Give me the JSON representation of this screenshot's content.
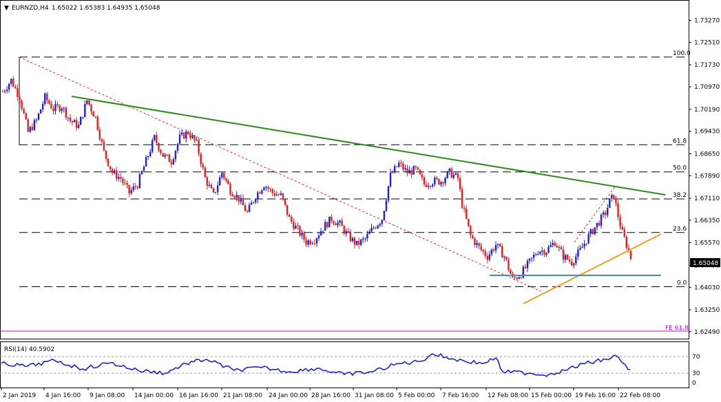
{
  "header": {
    "symbol": "EURNZD,H4",
    "ohlc": "1.65022 1.65383 1.64935 1.65048"
  },
  "price_badge": "1.65048",
  "rsi": {
    "label": "RSI(14) 40.5902",
    "levels": [
      "70",
      "30",
      "0"
    ],
    "upper": 70,
    "lower": 30
  },
  "fib_labels": [
    {
      "text": "100.0",
      "price": 1.72
    },
    {
      "text": "61.8",
      "price": 1.68963
    },
    {
      "text": "50.0",
      "price": 1.68024
    },
    {
      "text": "38.2",
      "price": 1.67086
    },
    {
      "text": "23.6",
      "price": 1.65925
    },
    {
      "text": "0.0",
      "price": 1.6405
    }
  ],
  "fe_label": {
    "text": "FE 61.8",
    "price": 1.6272
  },
  "colors": {
    "bull": "#2020d0",
    "bear": "#e02020",
    "trend_green": "#2a8a1a",
    "support_orange": "#f0a020",
    "support_blue": "#3a8ad6",
    "fib_dashed": "#dd2222",
    "fe_line": "#cc00cc",
    "rsi_line": "#1a24c8"
  },
  "chart_data": {
    "type": "candlestick",
    "title": "EURNZD,H4",
    "ylim": [
      1.6225,
      1.7395
    ],
    "y_ticks": [
      "1.73270",
      "1.72510",
      "1.71730",
      "1.70970",
      "1.70190",
      "1.69430",
      "1.68650",
      "1.67890",
      "1.67110",
      "1.66350",
      "1.65570",
      "1.64790",
      "1.64030",
      "1.63250",
      "1.62490"
    ],
    "x_ticks": [
      "2 Jan 2019",
      "4 Jan 16:00",
      "9 Jan 08:00",
      "14 Jan 00:00",
      "16 Jan 16:00",
      "21 Jan 08:00",
      "24 Jan 00:00",
      "28 Jan 16:00",
      "31 Jan 08:00",
      "5 Feb 00:00",
      "7 Feb 16:00",
      "12 Feb 08:00",
      "15 Feb 00:00",
      "19 Feb 16:00",
      "22 Feb 08:00"
    ],
    "close_path": [
      [
        0,
        1.708
      ],
      [
        4,
        1.712
      ],
      [
        8,
        1.706
      ],
      [
        12,
        1.694
      ],
      [
        16,
        1.698
      ],
      [
        20,
        1.706
      ],
      [
        24,
        1.702
      ],
      [
        28,
        1.703
      ],
      [
        32,
        1.698
      ],
      [
        36,
        1.696
      ],
      [
        40,
        1.705
      ],
      [
        44,
        1.699
      ],
      [
        48,
        1.687
      ],
      [
        52,
        1.68
      ],
      [
        56,
        1.678
      ],
      [
        60,
        1.673
      ],
      [
        64,
        1.676
      ],
      [
        68,
        1.684
      ],
      [
        72,
        1.692
      ],
      [
        76,
        1.686
      ],
      [
        80,
        1.684
      ],
      [
        84,
        1.692
      ],
      [
        88,
        1.694
      ],
      [
        92,
        1.69
      ],
      [
        96,
        1.678
      ],
      [
        100,
        1.672
      ],
      [
        104,
        1.68
      ],
      [
        108,
        1.674
      ],
      [
        112,
        1.671
      ],
      [
        116,
        1.666
      ],
      [
        120,
        1.672
      ],
      [
        124,
        1.676
      ],
      [
        128,
        1.673
      ],
      [
        132,
        1.672
      ],
      [
        136,
        1.664
      ],
      [
        140,
        1.66
      ],
      [
        144,
        1.656
      ],
      [
        148,
        1.657
      ],
      [
        152,
        1.661
      ],
      [
        156,
        1.664
      ],
      [
        160,
        1.662
      ],
      [
        164,
        1.658
      ],
      [
        168,
        1.655
      ],
      [
        172,
        1.657
      ],
      [
        176,
        1.661
      ],
      [
        180,
        1.664
      ],
      [
        184,
        1.679
      ],
      [
        188,
        1.683
      ],
      [
        192,
        1.68
      ],
      [
        196,
        1.681
      ],
      [
        200,
        1.676
      ],
      [
        204,
        1.677
      ],
      [
        208,
        1.677
      ],
      [
        212,
        1.68
      ],
      [
        216,
        1.678
      ],
      [
        218,
        1.669
      ],
      [
        222,
        1.658
      ],
      [
        226,
        1.654
      ],
      [
        230,
        1.651
      ],
      [
        234,
        1.655
      ],
      [
        238,
        1.651
      ],
      [
        242,
        1.643
      ],
      [
        246,
        1.645
      ],
      [
        250,
        1.649
      ],
      [
        254,
        1.653
      ],
      [
        258,
        1.653
      ],
      [
        262,
        1.656
      ],
      [
        266,
        1.651
      ],
      [
        270,
        1.649
      ],
      [
        274,
        1.653
      ],
      [
        278,
        1.658
      ],
      [
        282,
        1.662
      ],
      [
        286,
        1.666
      ],
      [
        288,
        1.67
      ],
      [
        290,
        1.672
      ],
      [
        292,
        1.665
      ],
      [
        294,
        1.659
      ],
      [
        296,
        1.655
      ],
      [
        298,
        1.6505
      ]
    ],
    "annotations": {
      "fib_levels": [
        "100.0",
        "61.8",
        "50.0",
        "38.2",
        "23.6",
        "0.0"
      ],
      "fe": "FE 61.8",
      "current_price": "1.65048"
    }
  }
}
